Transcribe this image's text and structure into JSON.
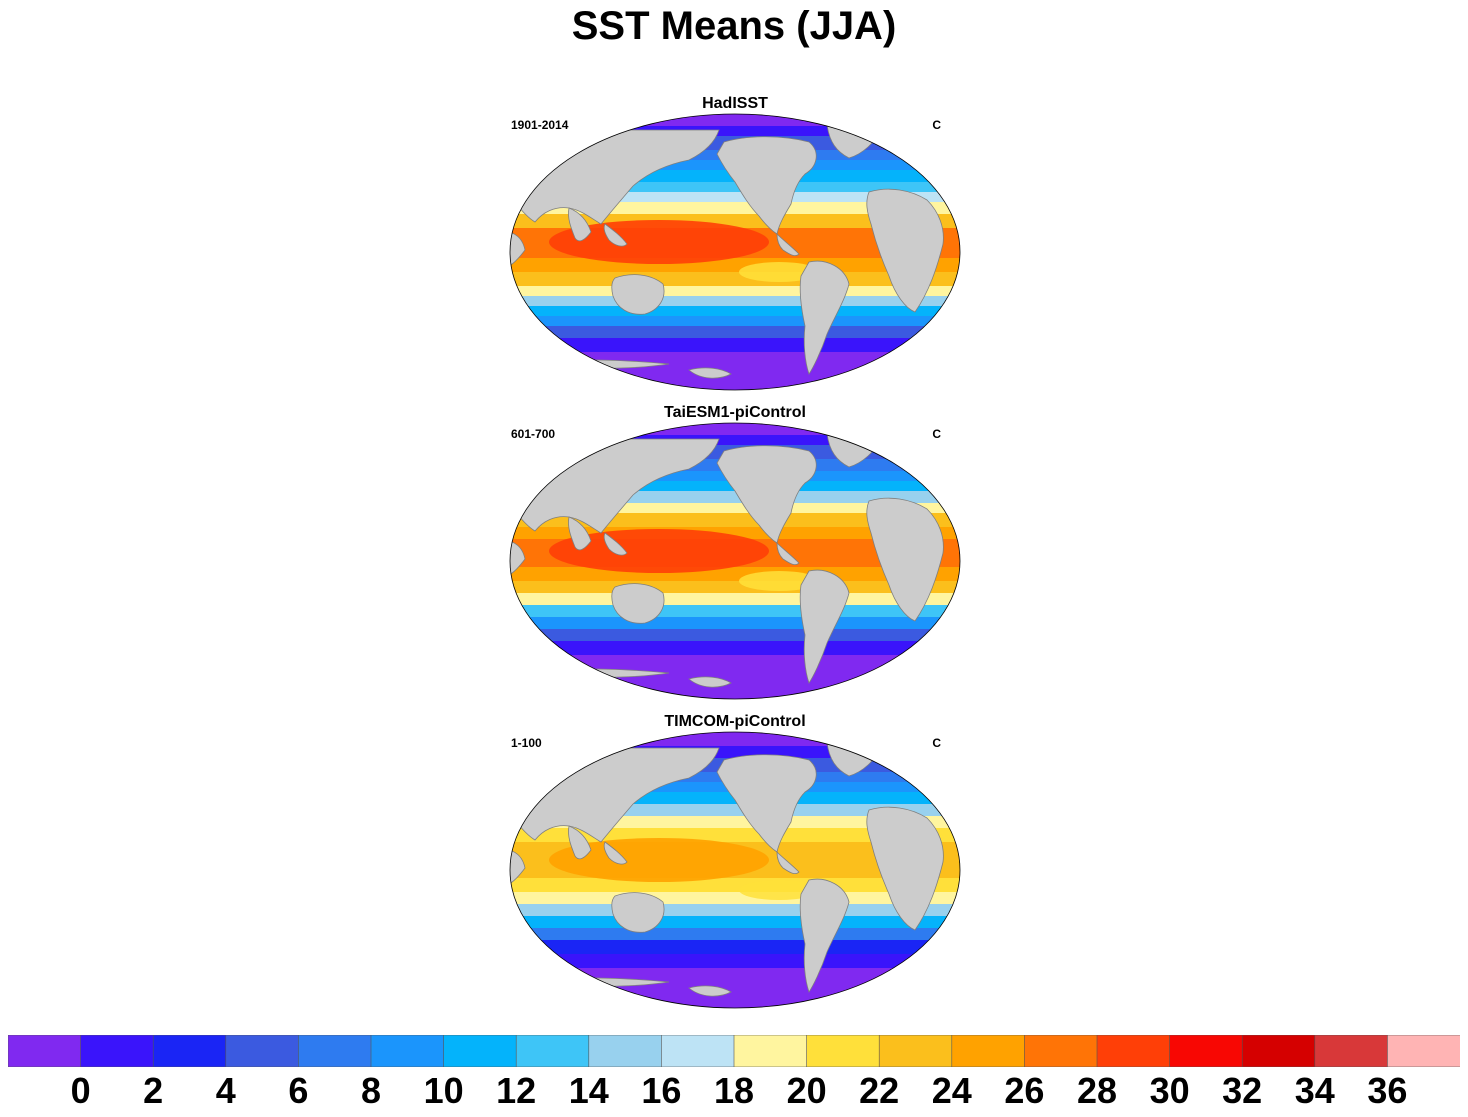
{
  "title": "SST Means (JJA)",
  "panels": [
    {
      "name": "HadISST",
      "period": "1901-2014",
      "units": "C"
    },
    {
      "name": "TaiESM1-piControl",
      "period": "601-700",
      "units": "C"
    },
    {
      "name": "TIMCOM-piControl",
      "period": "1-100",
      "units": "C"
    }
  ],
  "colorbar": {
    "tick_labels": [
      "0",
      "2",
      "4",
      "6",
      "8",
      "10",
      "12",
      "14",
      "16",
      "18",
      "20",
      "22",
      "24",
      "26",
      "28",
      "30",
      "32",
      "34",
      "36"
    ],
    "colors": [
      "#8029f0",
      "#3a14fb",
      "#1a25f5",
      "#3b5ae0",
      "#2e7bf0",
      "#1b95fc",
      "#04b3fb",
      "#3ec5f7",
      "#98d1ee",
      "#bde3f5",
      "#fff59f",
      "#ffe03a",
      "#fbbf1c",
      "#ffa200",
      "#ff7406",
      "#ff3f07",
      "#f80703",
      "#d50000",
      "#d83839",
      "#ffb4b4"
    ]
  },
  "colors": {
    "land": "#cccccc",
    "coast": "#7f7f7f"
  }
}
